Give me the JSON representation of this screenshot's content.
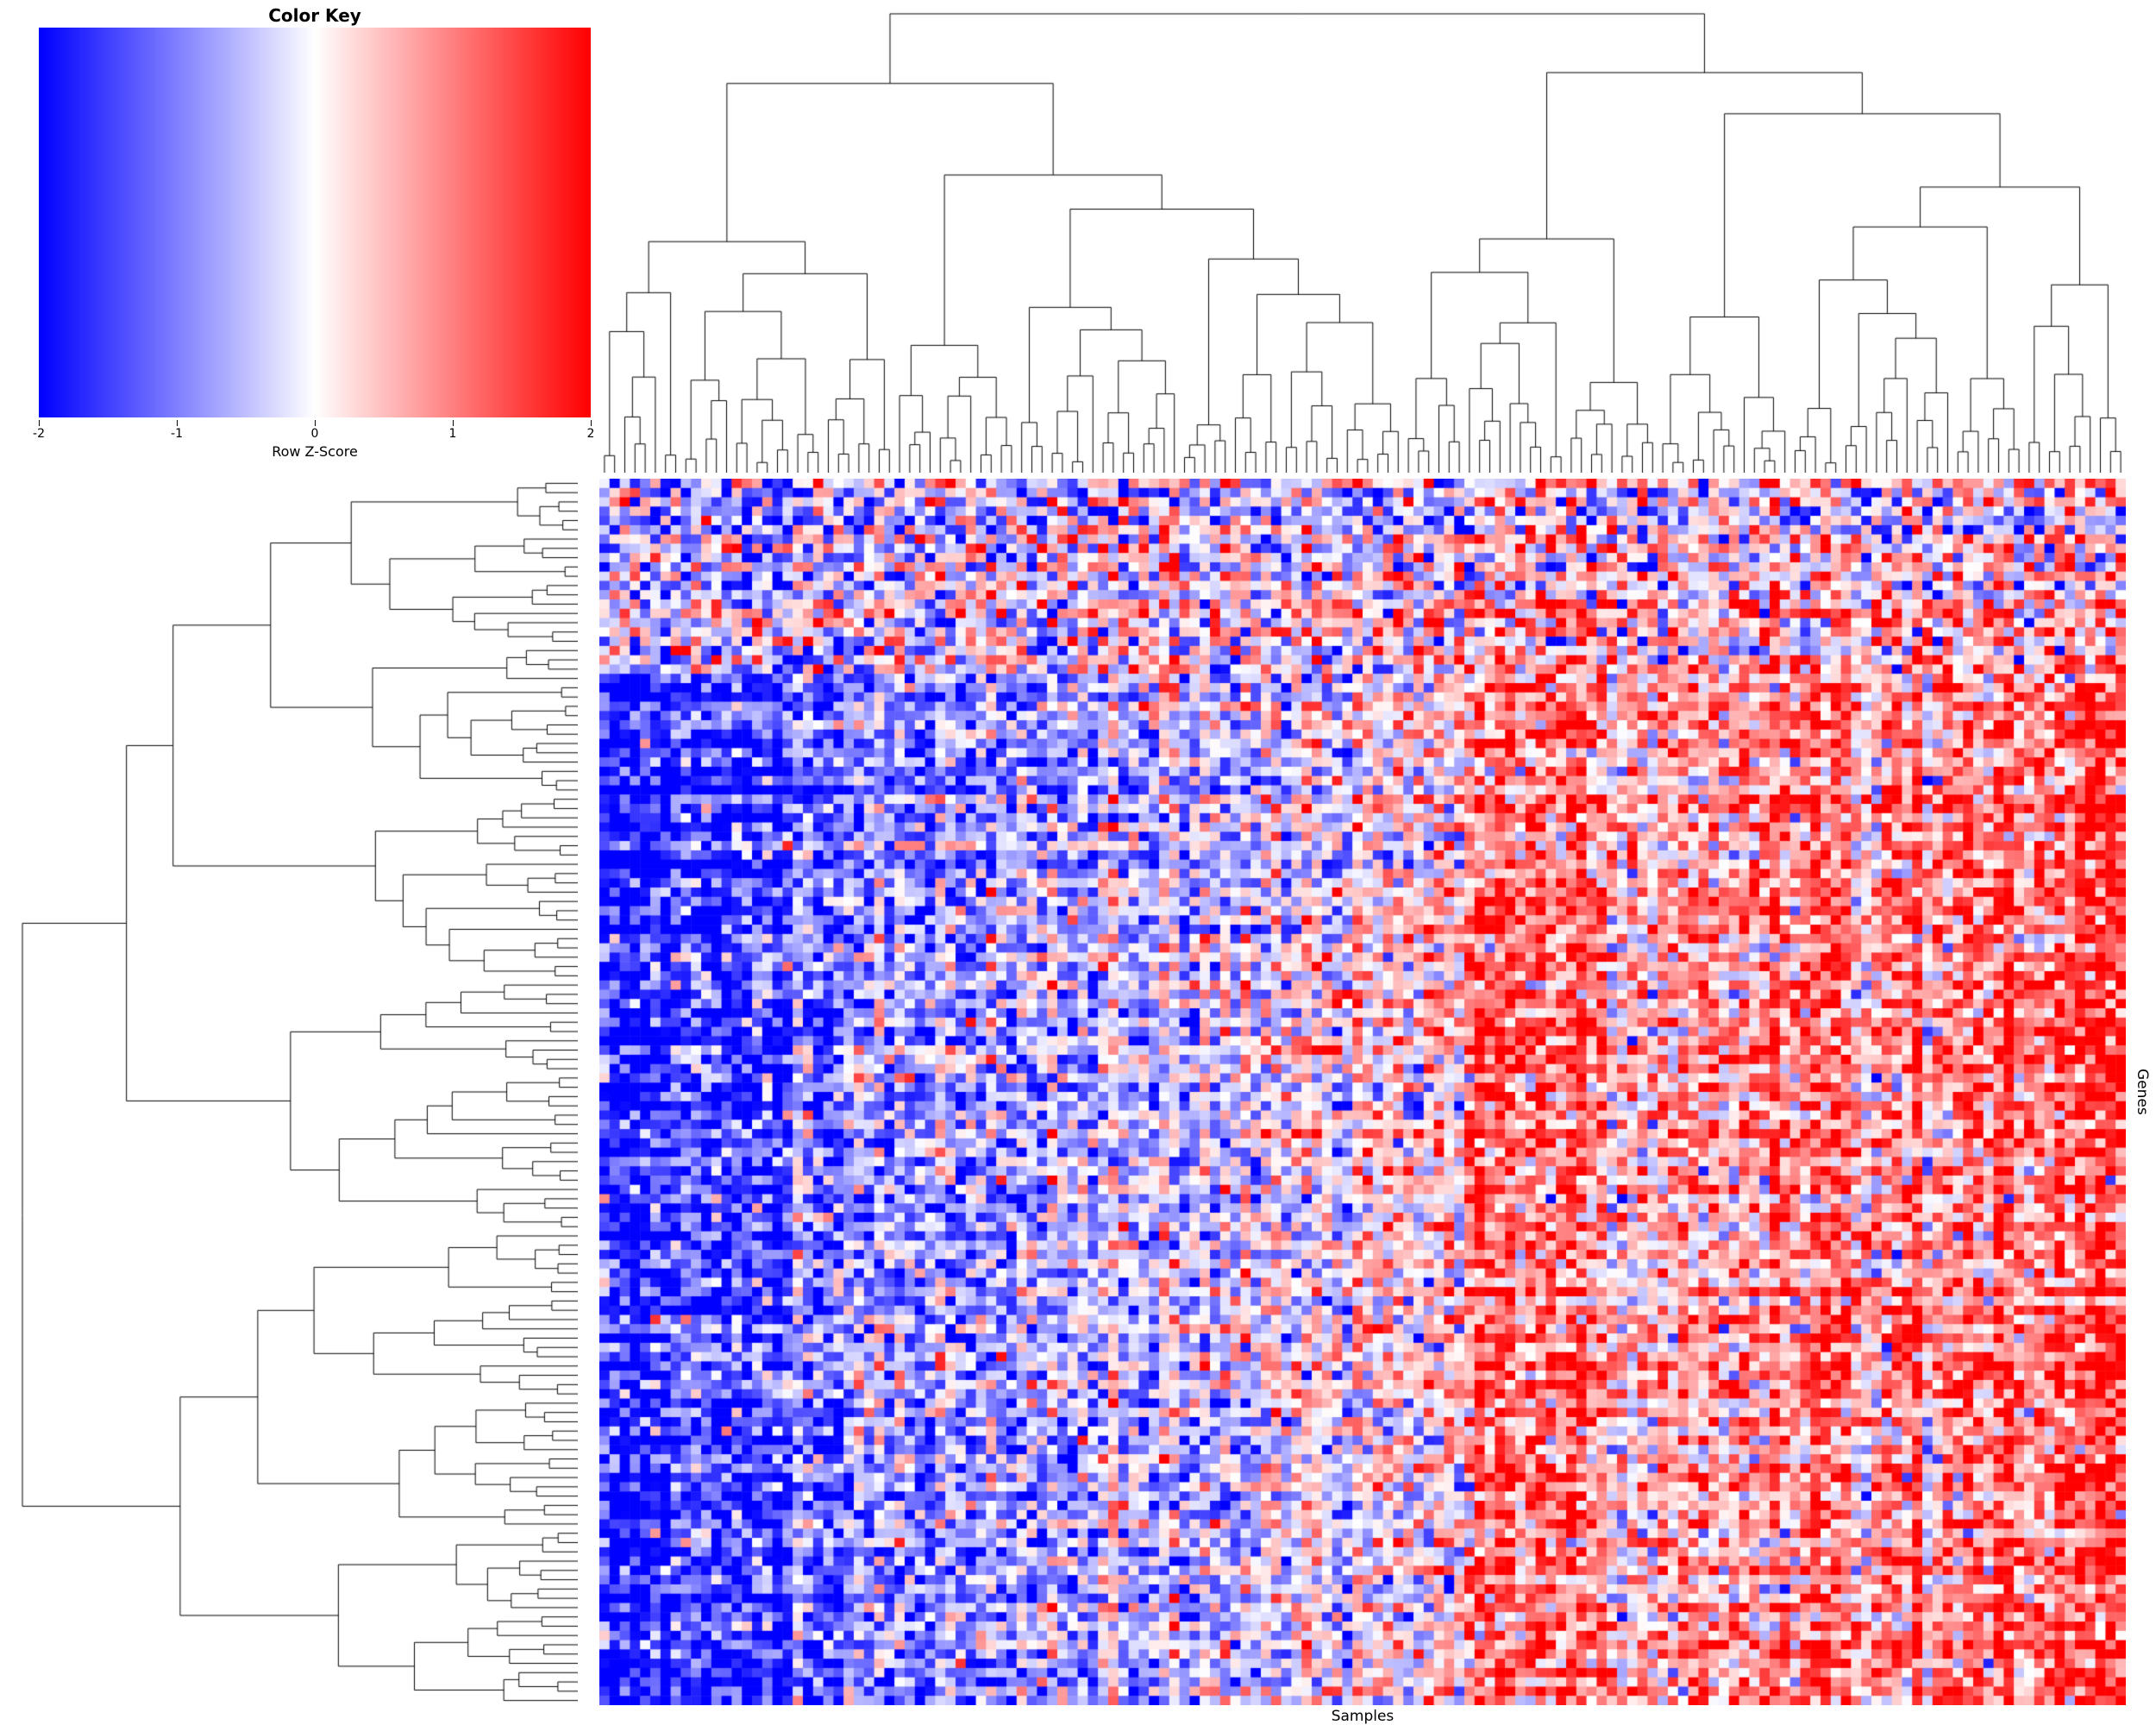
{
  "figure": {
    "background": "#FFFFFF"
  },
  "chart_data": {
    "type": "heatmap",
    "title": "Color Key",
    "colorbar_label": "Row Z-Score",
    "colorbar_ticks": [
      -2,
      -1,
      0,
      1,
      2
    ],
    "zlim": [
      -2,
      2
    ],
    "colorscale": [
      "#0000FF",
      "#FFFFFF",
      "#FF0000"
    ],
    "xlabel": "Samples",
    "ylabel": "Genes",
    "n_cols": 150,
    "n_rows": 132,
    "row_dendrogram": true,
    "col_dendrogram": true,
    "legend_position": "top-left",
    "grid": false,
    "generation": {
      "seed": 1337,
      "col_gradient": [
        -1.3,
        1.3
      ],
      "noise_sd": 0.85,
      "col_jitter_sd": 0.3,
      "row_weight_range": [
        0.75,
        1.35
      ],
      "row_offset_sd": 0.22,
      "top_band_rows_fraction": 0.16,
      "top_band_weight": 0.3,
      "top_band_noise_sd": 1.1,
      "hot_column_band": [
        0.57,
        0.66
      ],
      "hot_column_boost": 0.6,
      "cold_column_band": [
        0.0,
        0.12
      ],
      "cold_column_boost": -0.35
    }
  }
}
